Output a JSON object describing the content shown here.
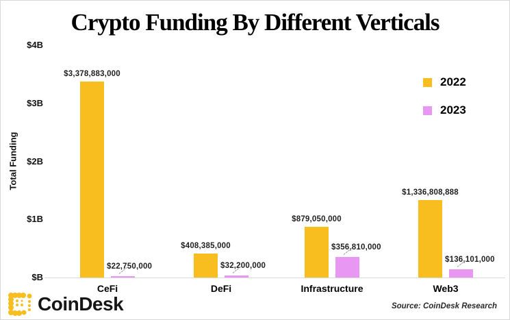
{
  "title": "Crypto Funding By Different Verticals",
  "y_axis": {
    "label": "Total Funding",
    "tick_labels_top_to_bottom": [
      "$4B",
      "$3B",
      "$2B",
      "$1B",
      "$B"
    ]
  },
  "legend": {
    "items": [
      {
        "label": "2022",
        "color": "#F8BE20"
      },
      {
        "label": "2023",
        "color": "#E897F2"
      }
    ]
  },
  "footer": {
    "logo_text": "CoinDesk",
    "source": "Source: CoinDesk Research",
    "logo_color": "#F8BE20"
  },
  "colors": {
    "bar_2022": "#F8BE20",
    "bar_2023": "#E897F2",
    "axis_line": "#d9d9d9",
    "text": "#000000"
  },
  "chart_data": {
    "type": "bar",
    "title": "Crypto Funding By Different Verticals",
    "xlabel": "",
    "ylabel": "Total Funding",
    "ylim": [
      0,
      4000000000
    ],
    "y_tick_labels": [
      "$B",
      "$1B",
      "$2B",
      "$3B",
      "$4B"
    ],
    "grid": false,
    "legend_position": "upper right",
    "categories": [
      "CeFi",
      "DeFi",
      "Infrastructure",
      "Web3"
    ],
    "series": [
      {
        "name": "2022",
        "color": "#F8BE20",
        "values": [
          3378883000,
          408385000,
          879050000,
          1336808888
        ],
        "data_labels": [
          "$3,378,883,000",
          "$408,385,000",
          "$879,050,000",
          "$1,336,808,888"
        ]
      },
      {
        "name": "2023",
        "color": "#E897F2",
        "values": [
          22750000,
          32200000,
          356810000,
          136101000
        ],
        "data_labels": [
          "$22,750,000",
          "$32,200,000",
          "$356,810,000",
          "$136,101,000"
        ]
      }
    ]
  }
}
